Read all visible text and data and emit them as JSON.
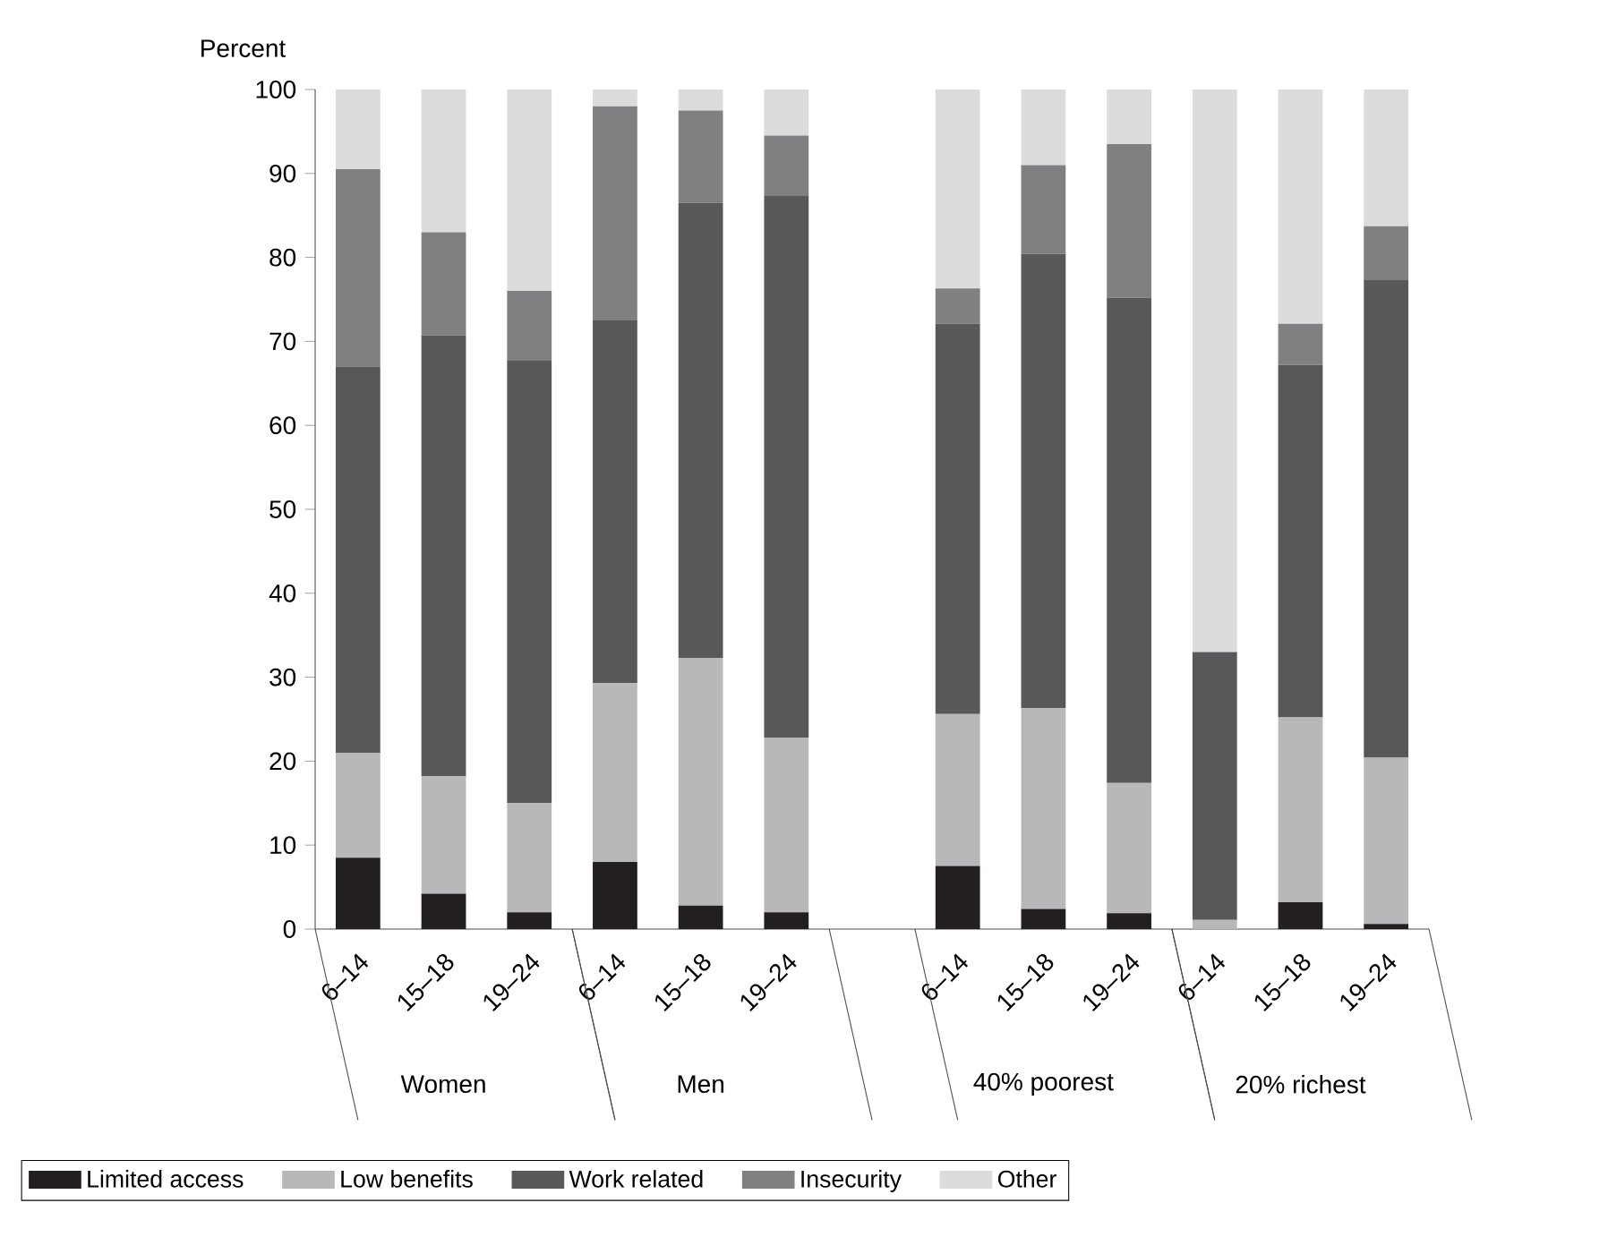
{
  "chart_data": {
    "type": "bar",
    "stacked": true,
    "ylabel": "Percent",
    "categories": [
      "6–14",
      "15–18",
      "19–24",
      "6–14",
      "15–18",
      "19–24",
      null,
      "6–14",
      "15–18",
      "19–24",
      "6–14",
      "15–18",
      "19–24"
    ],
    "annotations": [
      "Women",
      "Men",
      "40% poorest",
      "20% richest"
    ],
    "series": [
      {
        "name": "Limited access",
        "color": "#231f20",
        "values": [
          8.5,
          4.2,
          2,
          8,
          2.8,
          2,
          null,
          7.5,
          2.4,
          1.9,
          null,
          3.2,
          0.6
        ]
      },
      {
        "name": "Low benefits",
        "color": "#b8b8ba",
        "values": [
          12.5,
          14,
          13,
          21.3,
          29.5,
          20.8,
          null,
          18.1,
          23.9,
          15.5,
          1.1,
          22,
          19.8
        ]
      },
      {
        "name": "Work related",
        "color": "#58585a",
        "values": [
          46,
          52.5,
          52.7,
          43.2,
          54.2,
          64.5,
          null,
          46.5,
          54.1,
          57.8,
          31.9,
          42,
          56.9
        ]
      },
      {
        "name": "Insecurity",
        "color": "#808082",
        "values": [
          23.5,
          12.3,
          8.3,
          25.5,
          11,
          7.2,
          null,
          4.2,
          10.6,
          18.3,
          null,
          4.9,
          6.4
        ]
      },
      {
        "name": "Other",
        "color": "#dcdcdd",
        "values": [
          9.5,
          17,
          24,
          2,
          2.5,
          5.5,
          null,
          23.7,
          9,
          6.5,
          67,
          27.9,
          16.3
        ]
      }
    ],
    "ylim": [
      0,
      100
    ],
    "yticks": [
      0,
      10,
      20,
      30,
      40,
      50,
      60,
      70,
      80,
      90,
      100
    ],
    "grid": false,
    "legend": "bottom"
  }
}
